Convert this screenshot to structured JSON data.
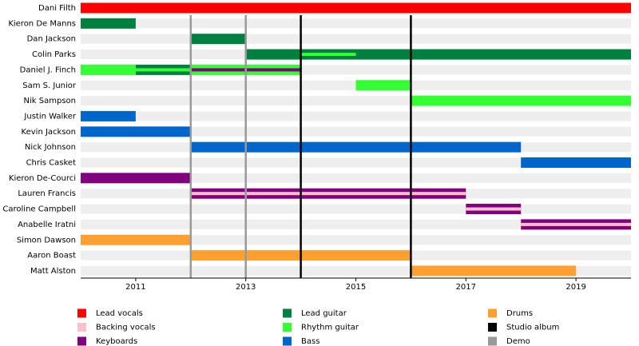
{
  "chart_data": {
    "type": "timeline",
    "categories": [
      "Dani Filth",
      "Kieron De Manns",
      "Dan Jackson",
      "Colin Parks",
      "Daniel J. Finch",
      "Sam S. Junior",
      "Nik Sampson",
      "Justin Walker",
      "Kevin Jackson",
      "Nick Johnson",
      "Chris Casket",
      "Kieron De-Courci",
      "Lauren Francis",
      "Caroline Campbell",
      "Anabelle Iratni",
      "Simon Dawson",
      "Aaron Boast",
      "Matt Alston"
    ],
    "xlim": [
      2010,
      2020
    ],
    "xticks": [
      2011,
      2013,
      2015,
      2017,
      2019
    ],
    "series": [
      {
        "name": "Lead vocals",
        "color": "#ff0000",
        "values": [
          [
            {
              "start": 2010,
              "end": 2020
            }
          ],
          null,
          null,
          null,
          null,
          null,
          null,
          null,
          null,
          null,
          null,
          null,
          null,
          null,
          null,
          null,
          null,
          null
        ]
      },
      {
        "name": "Backing vocals",
        "color": "#ffc0cb",
        "values": [
          null,
          null,
          null,
          null,
          null,
          null,
          null,
          null,
          null,
          null,
          null,
          null,
          [
            {
              "start": 2012,
              "end": 2017,
              "secondary": true
            }
          ],
          [
            {
              "start": 2017,
              "end": 2018,
              "secondary": true
            }
          ],
          [
            {
              "start": 2018,
              "end": 2020,
              "secondary": true
            }
          ],
          null,
          null,
          null
        ]
      },
      {
        "name": "Keyboards",
        "color": "#800080",
        "values": [
          null,
          null,
          null,
          null,
          [
            {
              "start": 2012,
              "end": 2014,
              "secondary": true
            }
          ],
          null,
          null,
          null,
          null,
          null,
          null,
          [
            {
              "start": 2010,
              "end": 2012
            }
          ],
          [
            {
              "start": 2012,
              "end": 2017
            }
          ],
          [
            {
              "start": 2017,
              "end": 2018
            }
          ],
          [
            {
              "start": 2018,
              "end": 2020
            }
          ],
          null,
          null,
          null
        ]
      },
      {
        "name": "Lead guitar",
        "color": "#008040",
        "values": [
          null,
          [
            {
              "start": 2010,
              "end": 2011
            }
          ],
          [
            {
              "start": 2012,
              "end": 2013
            }
          ],
          [
            {
              "start": 2013,
              "end": 2020
            }
          ],
          [
            {
              "start": 2011,
              "end": 2012
            }
          ],
          null,
          null,
          null,
          null,
          null,
          null,
          null,
          null,
          null,
          null,
          null,
          null,
          null
        ]
      },
      {
        "name": "Rhythm guitar",
        "color": "#33ff33",
        "values": [
          null,
          null,
          null,
          [
            {
              "start": 2014,
              "end": 2015,
              "secondary": true
            }
          ],
          [
            {
              "start": 2010,
              "end": 2011
            },
            {
              "start": 2012,
              "end": 2014
            },
            {
              "start": 2011,
              "end": 2012,
              "secondary": true
            }
          ],
          [
            {
              "start": 2015,
              "end": 2016
            }
          ],
          [
            {
              "start": 2016,
              "end": 2020
            }
          ],
          null,
          null,
          null,
          null,
          null,
          null,
          null,
          null,
          null,
          null,
          null
        ]
      },
      {
        "name": "Bass",
        "color": "#0066cc",
        "values": [
          null,
          null,
          null,
          null,
          null,
          null,
          null,
          [
            {
              "start": 2010,
              "end": 2011
            }
          ],
          [
            {
              "start": 2010,
              "end": 2012
            }
          ],
          [
            {
              "start": 2012,
              "end": 2018
            }
          ],
          [
            {
              "start": 2018,
              "end": 2020
            }
          ],
          null,
          null,
          null,
          null,
          null,
          null,
          null
        ]
      },
      {
        "name": "Drums",
        "color": "#ffa030",
        "values": [
          null,
          null,
          null,
          null,
          null,
          null,
          null,
          null,
          null,
          null,
          null,
          null,
          null,
          null,
          null,
          [
            {
              "start": 2010,
              "end": 2012
            }
          ],
          [
            {
              "start": 2012,
              "end": 2016
            }
          ],
          [
            {
              "start": 2016,
              "end": 2019
            }
          ]
        ]
      }
    ],
    "events": [
      {
        "name": "Studio album",
        "color": "#000000",
        "x": [
          2014,
          2016
        ]
      },
      {
        "name": "Demo",
        "color": "#999999",
        "x": [
          2012,
          2013
        ]
      }
    ]
  }
}
